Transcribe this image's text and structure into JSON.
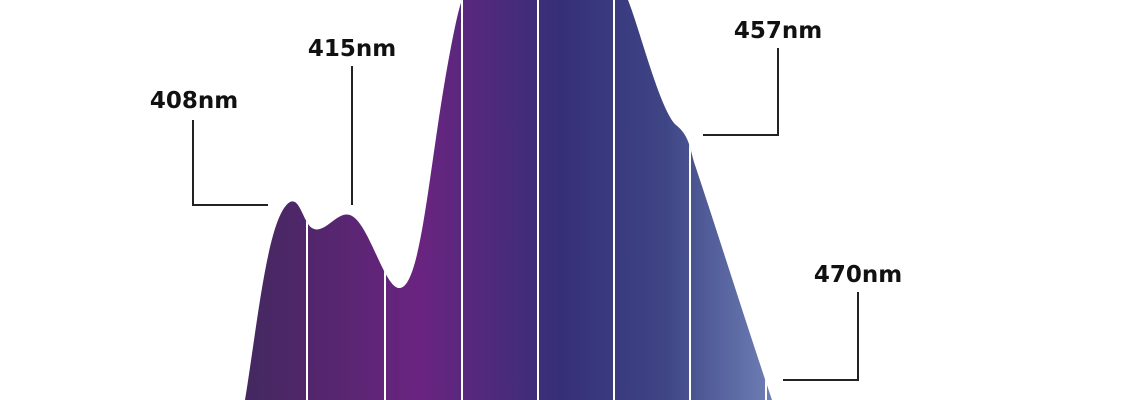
{
  "labels": [
    "408nm",
    "415nm",
    "457nm",
    "470nm"
  ]
}
